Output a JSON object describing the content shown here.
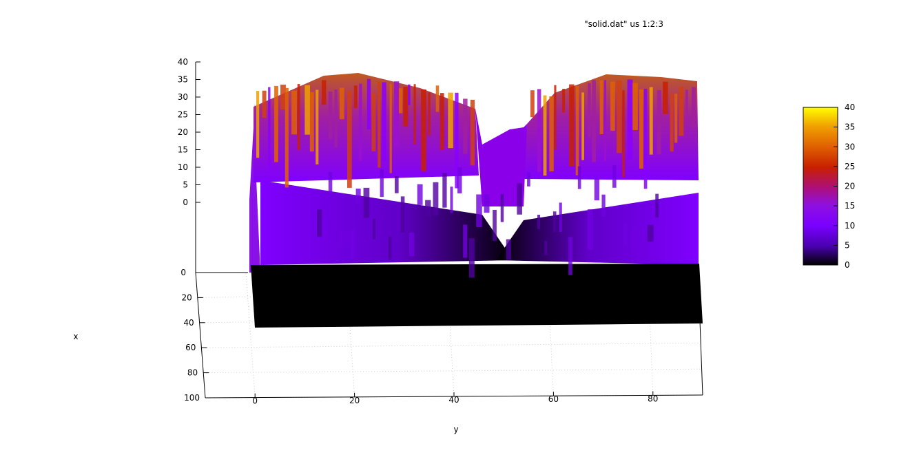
{
  "chart_data": {
    "type": "surface",
    "title": "",
    "key": "\"solid.dat\" us 1:2:3",
    "xlabel": "x",
    "ylabel": "y",
    "zlabel": "",
    "x_ticks": [
      "0",
      "20",
      "40",
      "60",
      "80",
      "100"
    ],
    "y_ticks": [
      "0",
      "20",
      "40",
      "60",
      "80"
    ],
    "z_ticks": [
      "0",
      "5",
      "10",
      "15",
      "20",
      "25",
      "30",
      "35",
      "40"
    ],
    "xlim": [
      0,
      100
    ],
    "ylim": [
      -10,
      90
    ],
    "zlim": [
      0,
      40
    ],
    "colorbar": {
      "ticks": [
        "0",
        "5",
        "10",
        "15",
        "20",
        "25",
        "30",
        "35",
        "40"
      ],
      "range": [
        0,
        40
      ],
      "palette": [
        "#000000",
        "#5500cc",
        "#8a00ff",
        "#a020b0",
        "#c02000",
        "#e06000",
        "#f0a000",
        "#ffff00"
      ]
    },
    "grid": true,
    "surface_description_colors": {
      "floor": "#000000",
      "low": "#8000ff",
      "high": "#f0a000"
    }
  }
}
